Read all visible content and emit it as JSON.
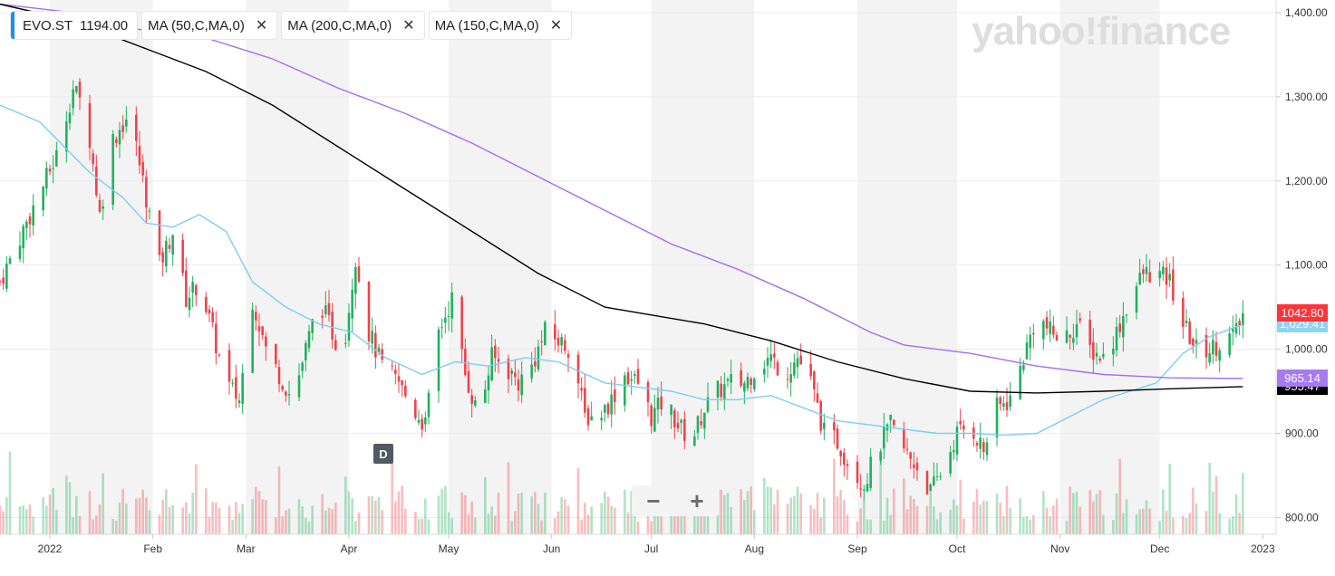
{
  "legend": [
    {
      "label": "EVO.ST",
      "value": "1194.00"
    },
    {
      "label": "MA (50,C,MA,0)"
    },
    {
      "label": "MA (200,C,MA,0)"
    },
    {
      "label": "MA (150,C,MA,0)"
    }
  ],
  "watermark": "yahoo!finance",
  "event_badge": "D",
  "zoom": {
    "minus": "−",
    "plus": "+"
  },
  "price_tags": [
    {
      "value": "1042.80",
      "price": 1042.8,
      "bg": "#ff333a",
      "color": "#ffffff"
    },
    {
      "value": "1,029.41",
      "price": 1029.41,
      "bg": "#8ed3f3",
      "color": "#ffffff"
    },
    {
      "value": "965.14",
      "price": 965.14,
      "bg": "#a87af0",
      "color": "#ffffff"
    },
    {
      "value": "955.47",
      "price": 955.47,
      "bg": "#000000",
      "color": "#ffffff"
    }
  ],
  "colors": {
    "up": "#1fb05d",
    "down": "#f2404a",
    "ma50": "#7ccdf2",
    "ma150": "#000000",
    "ma200": "#a36df2",
    "band": "#f3f3f3"
  },
  "chart_data": {
    "type": "candlestick",
    "y_ticks": [
      "1,400.00",
      "1,300.00",
      "1,200.00",
      "1,100.00",
      "1,000.00",
      "900.00",
      "800.00"
    ],
    "y_tick_values": [
      1400,
      1300,
      1200,
      1100,
      1000,
      900,
      800
    ],
    "ylim": [
      780,
      1415
    ],
    "x_ticks": [
      "2022",
      "Feb",
      "Mar",
      "Apr",
      "May",
      "Jun",
      "Jul",
      "Aug",
      "Sep",
      "Oct",
      "Nov",
      "Dec",
      "2023"
    ],
    "x_tick_days": [
      3,
      34,
      62,
      93,
      123,
      154,
      184,
      215,
      246,
      276,
      307,
      337,
      368
    ],
    "x_range_days": [
      -12,
      372
    ],
    "series": [
      {
        "name": "EVO.ST",
        "last": 1042.8,
        "anchors": [
          [
            -12,
            1080
          ],
          [
            5,
            1230
          ],
          [
            10,
            1310
          ],
          [
            14,
            1280
          ],
          [
            18,
            1160
          ],
          [
            22,
            1250
          ],
          [
            27,
            1280
          ],
          [
            32,
            1180
          ],
          [
            36,
            1100
          ],
          [
            40,
            1140
          ],
          [
            44,
            1060
          ],
          [
            48,
            1080
          ],
          [
            52,
            1020
          ],
          [
            56,
            960
          ],
          [
            60,
            940
          ],
          [
            64,
            1060
          ],
          [
            68,
            1000
          ],
          [
            72,
            970
          ],
          [
            76,
            940
          ],
          [
            80,
            1000
          ],
          [
            84,
            1060
          ],
          [
            88,
            1020
          ],
          [
            91,
            990
          ],
          [
            95,
            1110
          ],
          [
            99,
            1020
          ],
          [
            103,
            980
          ],
          [
            108,
            960
          ],
          [
            112,
            930
          ],
          [
            116,
            910
          ],
          [
            120,
            1020
          ],
          [
            124,
            1060
          ],
          [
            128,
            970
          ],
          [
            132,
            920
          ],
          [
            136,
            990
          ],
          [
            140,
            980
          ],
          [
            144,
            960
          ],
          [
            148,
            980
          ],
          [
            152,
            1020
          ],
          [
            156,
            1010
          ],
          [
            160,
            1000
          ],
          [
            164,
            920
          ],
          [
            168,
            920
          ],
          [
            172,
            940
          ],
          [
            176,
            970
          ],
          [
            180,
            960
          ],
          [
            184,
            920
          ],
          [
            188,
            940
          ],
          [
            192,
            910
          ],
          [
            196,
            890
          ],
          [
            200,
            930
          ],
          [
            204,
            950
          ],
          [
            208,
            960
          ],
          [
            212,
            960
          ],
          [
            216,
            980
          ],
          [
            220,
            990
          ],
          [
            224,
            970
          ],
          [
            228,
            990
          ],
          [
            232,
            960
          ],
          [
            236,
            900
          ],
          [
            240,
            890
          ],
          [
            244,
            860
          ],
          [
            248,
            840
          ],
          [
            252,
            880
          ],
          [
            256,
            910
          ],
          [
            260,
            880
          ],
          [
            264,
            860
          ],
          [
            268,
            830
          ],
          [
            272,
            860
          ],
          [
            276,
            900
          ],
          [
            280,
            910
          ],
          [
            284,
            880
          ],
          [
            288,
            930
          ],
          [
            292,
            940
          ],
          [
            296,
            990
          ],
          [
            300,
            1040
          ],
          [
            304,
            1020
          ],
          [
            308,
            1010
          ],
          [
            312,
            1030
          ],
          [
            316,
            1000
          ],
          [
            320,
            990
          ],
          [
            324,
            1020
          ],
          [
            328,
            1060
          ],
          [
            332,
            1090
          ],
          [
            336,
            1090
          ],
          [
            340,
            1080
          ],
          [
            344,
            1030
          ],
          [
            348,
            1000
          ],
          [
            352,
            1000
          ],
          [
            356,
            1010
          ],
          [
            360,
            1020
          ],
          [
            362,
            1042.8
          ]
        ]
      },
      {
        "name": "MA (50,C,MA,0)",
        "points": [
          [
            -12,
            1290
          ],
          [
            0,
            1270
          ],
          [
            15,
            1210
          ],
          [
            25,
            1180
          ],
          [
            32,
            1150
          ],
          [
            40,
            1145
          ],
          [
            48,
            1160
          ],
          [
            56,
            1140
          ],
          [
            64,
            1080
          ],
          [
            74,
            1050
          ],
          [
            84,
            1030
          ],
          [
            94,
            1020
          ],
          [
            104,
            990
          ],
          [
            115,
            970
          ],
          [
            125,
            985
          ],
          [
            135,
            980
          ],
          [
            146,
            990
          ],
          [
            156,
            985
          ],
          [
            170,
            960
          ],
          [
            180,
            955
          ],
          [
            190,
            950
          ],
          [
            200,
            940
          ],
          [
            210,
            940
          ],
          [
            220,
            945
          ],
          [
            230,
            930
          ],
          [
            240,
            915
          ],
          [
            250,
            910
          ],
          [
            260,
            905
          ],
          [
            270,
            900
          ],
          [
            280,
            900
          ],
          [
            290,
            898
          ],
          [
            300,
            900
          ],
          [
            310,
            920
          ],
          [
            320,
            940
          ],
          [
            328,
            950
          ],
          [
            336,
            960
          ],
          [
            344,
            995
          ],
          [
            352,
            1015
          ],
          [
            362,
            1029.4
          ]
        ]
      },
      {
        "name": "MA (200,C,MA,0)",
        "points": [
          [
            -12,
            1410
          ],
          [
            10,
            1400
          ],
          [
            30,
            1380
          ],
          [
            50,
            1370
          ],
          [
            70,
            1345
          ],
          [
            90,
            1310
          ],
          [
            110,
            1280
          ],
          [
            130,
            1245
          ],
          [
            150,
            1205
          ],
          [
            170,
            1165
          ],
          [
            190,
            1125
          ],
          [
            210,
            1095
          ],
          [
            230,
            1060
          ],
          [
            250,
            1020
          ],
          [
            260,
            1005
          ],
          [
            280,
            995
          ],
          [
            300,
            980
          ],
          [
            320,
            970
          ],
          [
            340,
            966
          ],
          [
            362,
            965.1
          ]
        ]
      },
      {
        "name": "MA (150,C,MA,0)",
        "points": [
          [
            -12,
            1410
          ],
          [
            10,
            1390
          ],
          [
            30,
            1360
          ],
          [
            50,
            1330
          ],
          [
            70,
            1290
          ],
          [
            90,
            1240
          ],
          [
            110,
            1190
          ],
          [
            130,
            1140
          ],
          [
            150,
            1090
          ],
          [
            170,
            1050
          ],
          [
            185,
            1040
          ],
          [
            200,
            1030
          ],
          [
            220,
            1010
          ],
          [
            240,
            985
          ],
          [
            260,
            965
          ],
          [
            280,
            950
          ],
          [
            300,
            948
          ],
          [
            320,
            950
          ],
          [
            340,
            953
          ],
          [
            362,
            955.5
          ]
        ]
      }
    ]
  }
}
